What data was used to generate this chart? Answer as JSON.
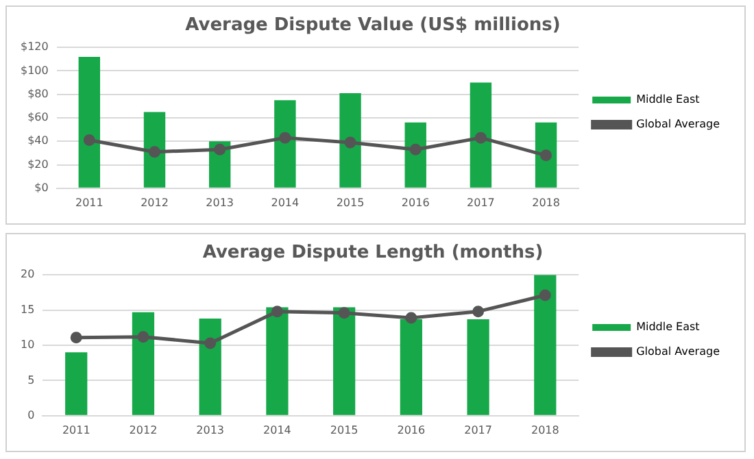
{
  "chart_data": [
    {
      "type": "bar",
      "title": "Average Dispute Value (US$ millions)",
      "categories": [
        "2011",
        "2012",
        "2013",
        "2014",
        "2015",
        "2016",
        "2017",
        "2018"
      ],
      "series": [
        {
          "name": "Middle East",
          "color": "#17a84a",
          "values": [
            112,
            65,
            40,
            75,
            81,
            56,
            90,
            56
          ]
        },
        {
          "name": "Global Average",
          "type": "line",
          "color": "#555555",
          "marker": "circle",
          "values": [
            41,
            31,
            33,
            43,
            39,
            33,
            43,
            28
          ]
        }
      ],
      "ylim": [
        0,
        120
      ],
      "yticks": [
        {
          "value": 0,
          "label": "$0"
        },
        {
          "value": 20,
          "label": "$20"
        },
        {
          "value": 40,
          "label": "$40"
        },
        {
          "value": 60,
          "label": "$60"
        },
        {
          "value": 80,
          "label": "$80"
        },
        {
          "value": 100,
          "label": "$100"
        },
        {
          "value": 120,
          "label": "$120"
        }
      ],
      "grid": "y",
      "legend": "right"
    },
    {
      "type": "bar",
      "title": "Average Dispute Length (months)",
      "categories": [
        "2011",
        "2012",
        "2013",
        "2014",
        "2015",
        "2016",
        "2017",
        "2018"
      ],
      "series": [
        {
          "name": "Middle East",
          "color": "#17a84a",
          "values": [
            9.0,
            14.7,
            13.8,
            15.4,
            15.4,
            13.7,
            13.7,
            20
          ]
        },
        {
          "name": "Global Average",
          "type": "line",
          "color": "#555555",
          "marker": "circle",
          "values": [
            11.1,
            11.2,
            10.3,
            14.8,
            14.6,
            13.9,
            14.8,
            17.1
          ]
        }
      ],
      "ylim": [
        0,
        20
      ],
      "yticks": [
        0,
        5,
        10,
        15,
        20
      ],
      "grid": "y",
      "legend": "right"
    }
  ]
}
